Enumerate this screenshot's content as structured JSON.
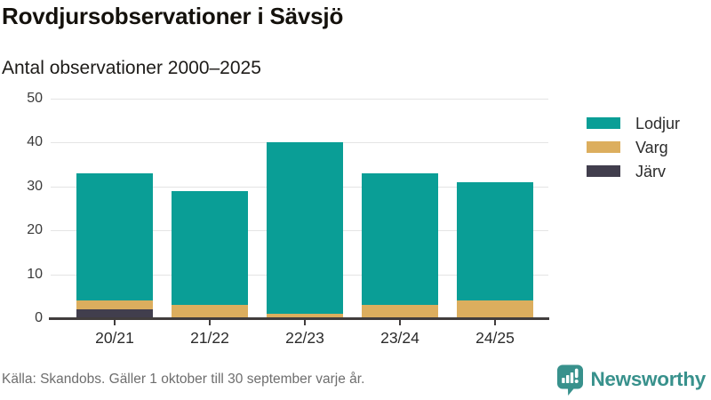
{
  "header": {
    "title": "Rovdjursobservationer i Sävsjö",
    "subtitle": "Antal observationer 2000–2025"
  },
  "chart_data": {
    "type": "bar",
    "stacked": true,
    "title": "Rovdjursobservationer i Sävsjö",
    "subtitle": "Antal observationer 2000–2025",
    "categories": [
      "20/21",
      "21/22",
      "22/23",
      "23/24",
      "24/25"
    ],
    "series": [
      {
        "name": "Lodjur",
        "color": "#0a9e96",
        "values": [
          29,
          26,
          39,
          30,
          27
        ]
      },
      {
        "name": "Varg",
        "color": "#dcae5e",
        "values": [
          2,
          3,
          1,
          3,
          4
        ]
      },
      {
        "name": "Järv",
        "color": "#413e4d",
        "values": [
          2,
          0,
          0,
          0,
          0
        ]
      }
    ],
    "stack_totals": [
      33,
      29,
      40,
      33,
      31
    ],
    "ylim": [
      0,
      50
    ],
    "yticks": [
      0,
      10,
      20,
      30,
      40,
      50
    ],
    "grid": true,
    "legend_position": "right"
  },
  "footer": {
    "source": "Källa: Skandobs. Gäller 1 oktober till 30 september varje år.",
    "brand": "Newsworthy"
  },
  "colors": {
    "lodjur": "#0a9e96",
    "varg": "#dcae5e",
    "jarv": "#413e4d",
    "brand_teal": "#38918c"
  }
}
